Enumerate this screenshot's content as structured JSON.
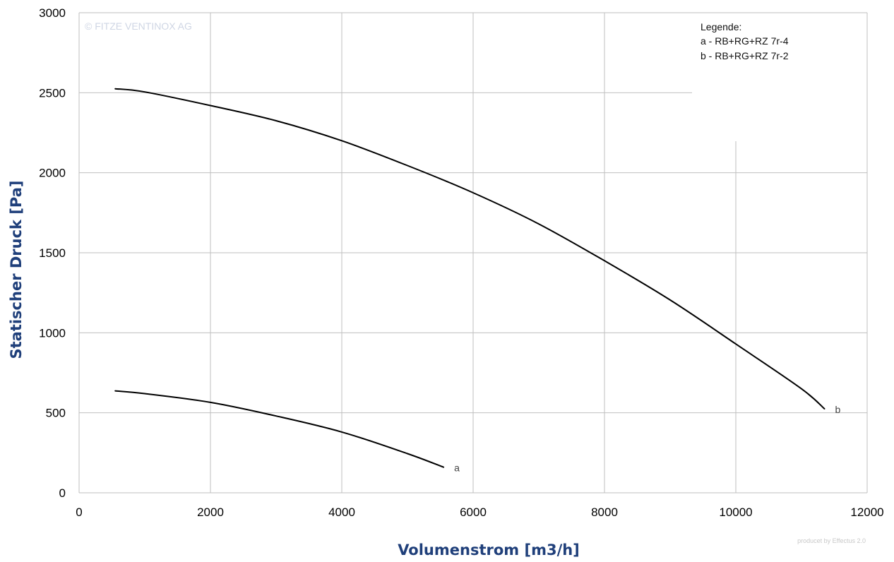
{
  "chart_data": {
    "type": "line",
    "xlabel": "Volumenstrom [m3/h]",
    "ylabel": "Statischer Druck [Pa]",
    "xlim": [
      0,
      12000
    ],
    "ylim": [
      0,
      3000
    ],
    "x_ticks": [
      "0",
      "2000",
      "4000",
      "6000",
      "8000",
      "10000",
      "12000"
    ],
    "y_ticks": [
      "0",
      "500",
      "1000",
      "1500",
      "2000",
      "2500",
      "3000"
    ],
    "grid": true,
    "legend": {
      "placement": "top-right",
      "title": "Legende:",
      "entries": [
        "a - RB+RG+RZ 7r-4",
        "b - RB+RG+RZ 7r-2"
      ]
    },
    "series": [
      {
        "name": "a",
        "x": [
          550,
          1000,
          2000,
          3000,
          4000,
          5000,
          5550
        ],
        "y": [
          637,
          620,
          565,
          480,
          380,
          245,
          160
        ]
      },
      {
        "name": "b",
        "x": [
          550,
          1000,
          2000,
          3000,
          4000,
          5000,
          6000,
          7000,
          8000,
          9000,
          10000,
          11000,
          11350
        ],
        "y": [
          2525,
          2505,
          2420,
          2325,
          2200,
          2045,
          1875,
          1680,
          1450,
          1205,
          930,
          650,
          525
        ]
      }
    ],
    "annotations": {
      "watermark": "© FITZE VENTINOX AG",
      "footer": "producet by Effectus 2.0"
    },
    "colors": {
      "axis_title": "#1f3f7a",
      "line": "#000000",
      "grid": "#bfbfbf"
    }
  }
}
